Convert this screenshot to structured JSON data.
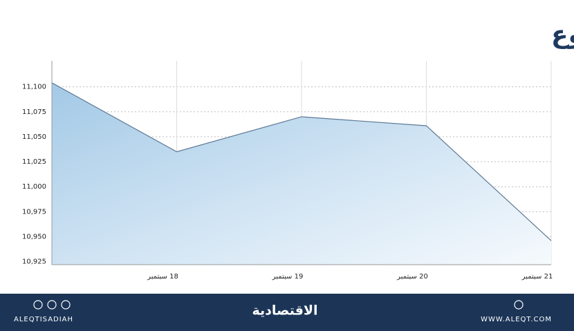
{
  "chart_data": {
    "type": "area",
    "title": "المؤشر في أسبوع",
    "categories": [
      null,
      "18 سبتمبر",
      "19 سبتمبر",
      "20 سبتمبر",
      "21 سبتمبر"
    ],
    "values": [
      11104,
      11035,
      11070,
      11061,
      10946
    ],
    "color": "#5d7893",
    "ylim": [
      10922,
      11126
    ],
    "yticks": [
      {
        "value": 10925,
        "label": "10,925"
      },
      {
        "value": 10950,
        "label": "10,950"
      },
      {
        "value": 10975,
        "label": "10,975"
      },
      {
        "value": 11000,
        "label": "11,000"
      },
      {
        "value": 11025,
        "label": "11,025"
      },
      {
        "value": 11050,
        "label": "11,050"
      },
      {
        "value": 11075,
        "label": "11,075"
      },
      {
        "value": 11100,
        "label": "11,100"
      }
    ],
    "grid": true
  },
  "footer": {
    "handle": "ALEQTISADIAH",
    "brand": "الاقتصادية",
    "website": "WWW.ALEQT.COM"
  }
}
